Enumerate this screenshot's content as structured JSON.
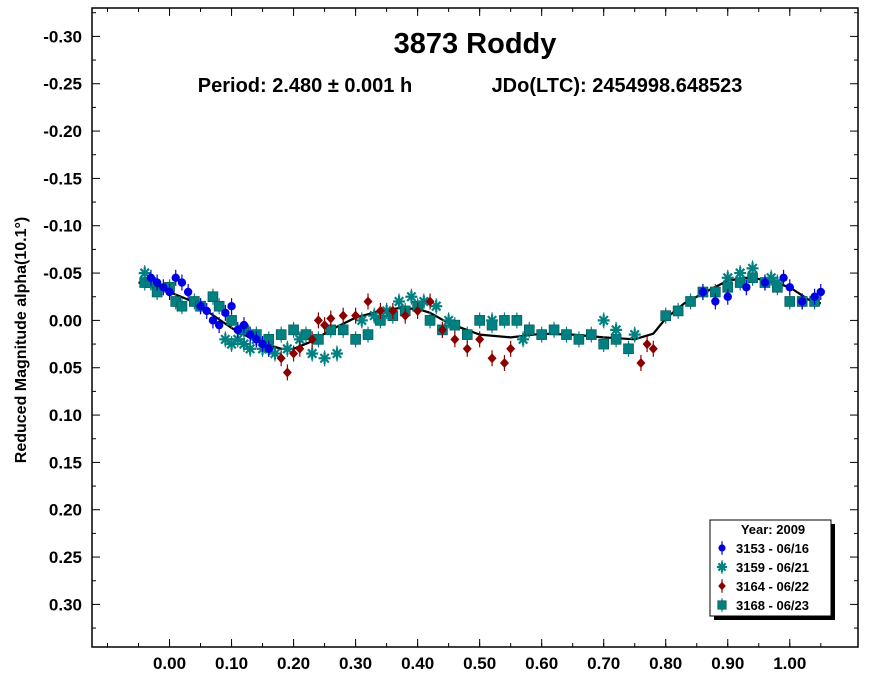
{
  "chart_data": {
    "type": "scatter",
    "title": "3873 Roddy",
    "subtitle_period": "Period: 2.480 ± 0.001 h",
    "subtitle_epoch": "JDo(LTC): 2454998.648523",
    "ylabel": "Reduced Magnitude alpha(10.1°)",
    "xlabel": "",
    "xlim": [
      -0.125,
      1.11
    ],
    "ylim": [
      -0.33,
      0.345
    ],
    "y_inverted": true,
    "grid": false,
    "x_ticks": [
      "0.00",
      "0.10",
      "0.20",
      "0.30",
      "0.40",
      "0.50",
      "0.60",
      "0.70",
      "0.80",
      "0.90",
      "1.00"
    ],
    "y_ticks": [
      "-0.30",
      "-0.25",
      "-0.20",
      "-0.15",
      "-0.10",
      "-0.05",
      "0.00",
      "0.05",
      "0.10",
      "0.15",
      "0.20",
      "0.25",
      "0.30"
    ],
    "legend": {
      "title": "Year: 2009",
      "placement": "bottom-right",
      "entries": [
        "3153 - 06/16",
        "3159 - 06/21",
        "3164 - 06/22",
        "3168 - 06/23"
      ]
    },
    "fit_curve": {
      "color": "#000000",
      "x": [
        -0.05,
        -0.02,
        0.0,
        0.03,
        0.06,
        0.1,
        0.14,
        0.18,
        0.2,
        0.23,
        0.26,
        0.3,
        0.34,
        0.37,
        0.4,
        0.42,
        0.45,
        0.5,
        0.55,
        0.6,
        0.65,
        0.7,
        0.75,
        0.78,
        0.8,
        0.83,
        0.87,
        0.9,
        0.93,
        0.96,
        1.0,
        1.03,
        1.05
      ],
      "y": [
        -0.04,
        -0.036,
        -0.03,
        -0.022,
        -0.01,
        0.008,
        0.022,
        0.03,
        0.03,
        0.022,
        0.01,
        -0.003,
        -0.01,
        -0.013,
        -0.012,
        -0.008,
        0.003,
        0.015,
        0.018,
        0.014,
        0.015,
        0.018,
        0.02,
        0.014,
        -0.002,
        -0.018,
        -0.032,
        -0.042,
        -0.045,
        -0.043,
        -0.035,
        -0.022,
        -0.018
      ]
    },
    "series": [
      {
        "name": "3153 - 06/16",
        "marker": "circle",
        "color": "#0000e0",
        "x": [
          -0.03,
          -0.02,
          -0.01,
          0.0,
          0.01,
          0.02,
          0.03,
          0.05,
          0.06,
          0.07,
          0.08,
          0.09,
          0.1,
          0.11,
          0.12,
          0.13,
          0.14,
          0.15,
          0.16,
          0.86,
          0.88,
          0.9,
          0.93,
          0.96,
          0.99,
          1.0,
          1.02,
          1.04,
          1.05
        ],
        "y": [
          -0.045,
          -0.04,
          -0.035,
          -0.03,
          -0.045,
          -0.04,
          -0.03,
          -0.015,
          -0.01,
          0.0,
          0.005,
          -0.008,
          -0.015,
          0.01,
          0.005,
          0.015,
          0.02,
          0.025,
          0.03,
          -0.03,
          -0.02,
          -0.025,
          -0.035,
          -0.04,
          -0.045,
          -0.035,
          -0.02,
          -0.025,
          -0.03
        ]
      },
      {
        "name": "3159 - 06/21",
        "marker": "asterisk",
        "color": "#008080",
        "x": [
          -0.04,
          -0.03,
          0.09,
          0.1,
          0.11,
          0.12,
          0.13,
          0.14,
          0.15,
          0.16,
          0.17,
          0.19,
          0.21,
          0.23,
          0.25,
          0.27,
          0.31,
          0.33,
          0.35,
          0.37,
          0.39,
          0.41,
          0.43,
          0.45,
          0.52,
          0.57,
          0.7,
          0.72,
          0.75,
          0.9,
          0.92,
          0.94,
          0.97,
          0.98
        ],
        "y": [
          -0.05,
          -0.04,
          0.02,
          0.025,
          0.02,
          0.025,
          0.03,
          0.02,
          0.03,
          0.03,
          0.035,
          0.03,
          0.02,
          0.035,
          0.04,
          0.035,
          0.0,
          -0.005,
          -0.01,
          -0.02,
          -0.025,
          -0.02,
          -0.015,
          0.0,
          0.0,
          0.02,
          0.0,
          0.01,
          0.015,
          -0.045,
          -0.05,
          -0.055,
          -0.045,
          -0.04
        ]
      },
      {
        "name": "3164 - 06/22",
        "marker": "diamond",
        "color": "#8b0000",
        "x": [
          0.18,
          0.19,
          0.2,
          0.21,
          0.23,
          0.24,
          0.25,
          0.26,
          0.28,
          0.3,
          0.32,
          0.34,
          0.36,
          0.38,
          0.4,
          0.42,
          0.44,
          0.46,
          0.48,
          0.5,
          0.52,
          0.54,
          0.55,
          0.76,
          0.77,
          0.78
        ],
        "y": [
          0.04,
          0.055,
          0.035,
          0.03,
          0.02,
          0.0,
          0.005,
          -0.002,
          -0.005,
          -0.005,
          -0.02,
          -0.01,
          -0.01,
          -0.005,
          -0.01,
          -0.02,
          0.01,
          0.02,
          0.03,
          0.02,
          0.04,
          0.045,
          0.03,
          0.045,
          0.025,
          0.03
        ]
      },
      {
        "name": "3168 - 06/23",
        "marker": "square",
        "color": "#008080",
        "x": [
          -0.04,
          -0.03,
          -0.02,
          0.0,
          0.01,
          0.02,
          0.04,
          0.05,
          0.07,
          0.08,
          0.1,
          0.12,
          0.14,
          0.16,
          0.18,
          0.2,
          0.22,
          0.24,
          0.26,
          0.28,
          0.3,
          0.32,
          0.34,
          0.36,
          0.38,
          0.4,
          0.42,
          0.44,
          0.46,
          0.48,
          0.5,
          0.52,
          0.54,
          0.56,
          0.58,
          0.6,
          0.62,
          0.64,
          0.66,
          0.68,
          0.7,
          0.72,
          0.74,
          0.8,
          0.82,
          0.84,
          0.86,
          0.88,
          0.9,
          0.92,
          0.94,
          0.96,
          0.98,
          1.0,
          1.02,
          1.04
        ],
        "y": [
          -0.04,
          -0.04,
          -0.03,
          -0.035,
          -0.02,
          -0.015,
          -0.02,
          -0.015,
          -0.025,
          -0.015,
          0.0,
          0.01,
          0.015,
          0.02,
          0.015,
          0.01,
          0.015,
          0.02,
          0.01,
          0.01,
          0.02,
          0.015,
          0.0,
          -0.005,
          -0.01,
          -0.015,
          0.0,
          0.01,
          0.005,
          0.015,
          0.0,
          0.005,
          0.0,
          0.0,
          0.01,
          0.015,
          0.01,
          0.015,
          0.02,
          0.015,
          0.025,
          0.02,
          0.03,
          -0.005,
          -0.01,
          -0.02,
          -0.03,
          -0.03,
          -0.035,
          -0.04,
          -0.045,
          -0.04,
          -0.035,
          -0.02,
          -0.02,
          -0.02
        ]
      }
    ]
  }
}
